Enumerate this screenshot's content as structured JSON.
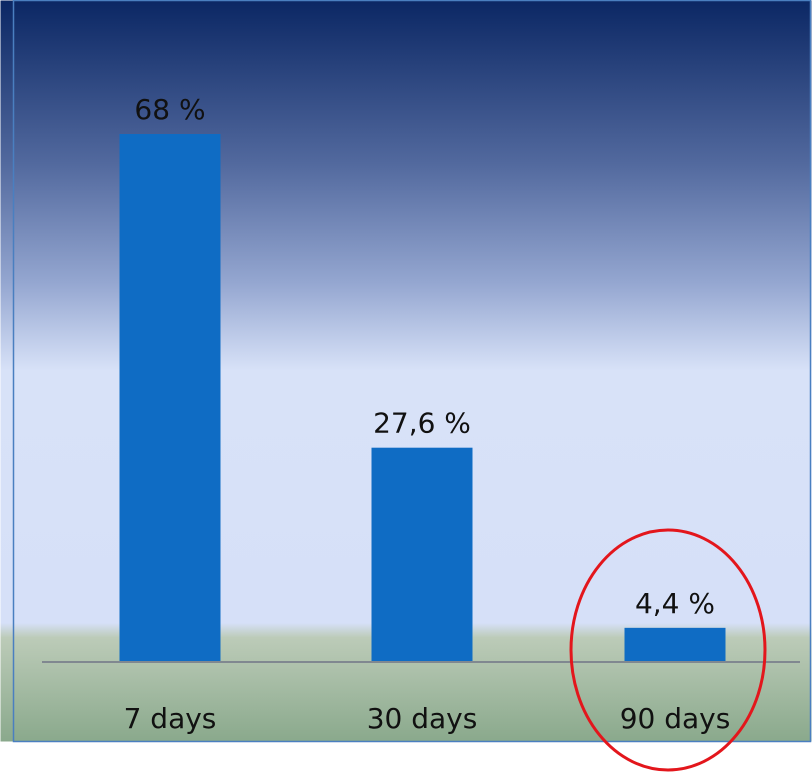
{
  "chart_data": {
    "type": "bar",
    "categories": [
      "7 days",
      "30 days",
      "90 days"
    ],
    "values": [
      68,
      27.6,
      4.4
    ],
    "value_labels": [
      "68 %",
      "27,6 %",
      "4,4 %"
    ],
    "ylim": [
      0,
      80
    ],
    "grid": false,
    "legend": "none",
    "highlighted_category": "90 days"
  },
  "colors": {
    "bar": "#0f6cc4",
    "baseline": "#808890",
    "highlight_circle": "#e3161c",
    "frame": "#4a7fc0",
    "background_top": "#0b2764",
    "background_mid": "#d8e2f8",
    "background_bottom": "#8aa98c"
  }
}
